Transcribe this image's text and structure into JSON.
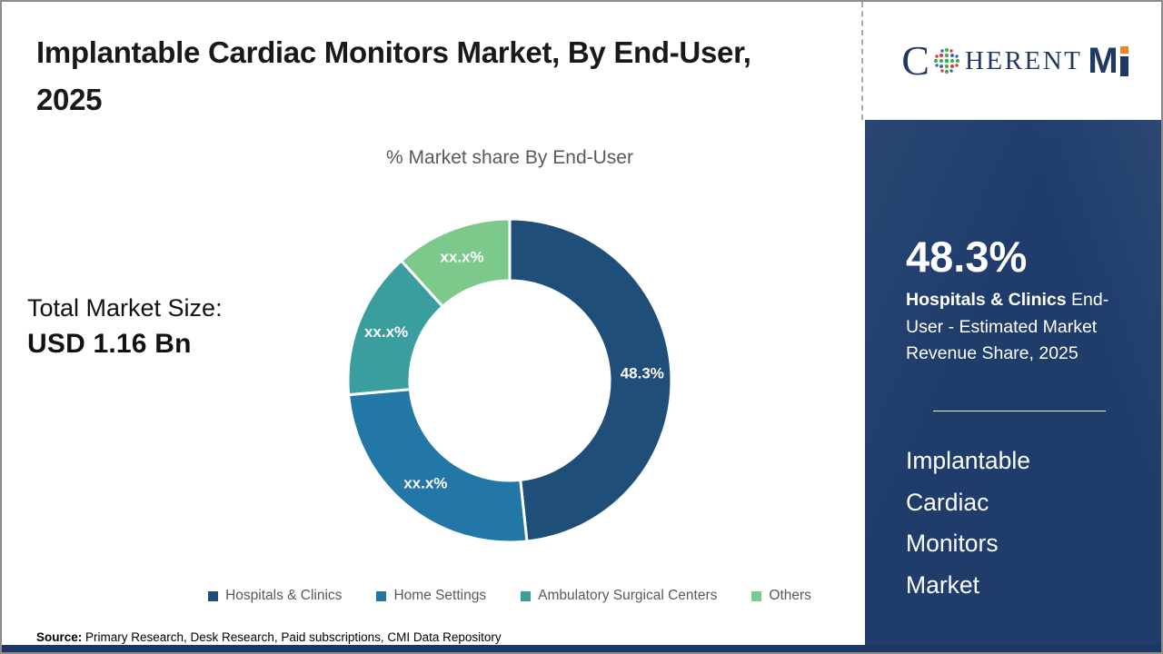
{
  "header": {
    "title": "Implantable Cardiac Monitors Market, By End-User, 2025"
  },
  "logo": {
    "part_c": "C",
    "part_herent": "HERENT",
    "part_m": "M",
    "globe_icon": "dot-globe-icon",
    "brand_color": "#1f3864",
    "accent_color": "#f58220"
  },
  "chart_data": {
    "type": "pie",
    "donut": true,
    "title": "% Market share By End-User",
    "categories": [
      "Hospitals & Clinics",
      "Home Settings",
      "Ambulatory Surgical Centers",
      "Others"
    ],
    "values": [
      48.3,
      25.3,
      14.7,
      11.7
    ],
    "labels": [
      "48.3%",
      "xx.x%",
      "xx.x%",
      "xx.x%"
    ],
    "colors": [
      "#1f4e79",
      "#2277a6",
      "#3a9d9e",
      "#7dc98c"
    ],
    "start_angle_deg": 0,
    "direction": "clockwise",
    "legend_position": "bottom"
  },
  "total_market": {
    "label": "Total Market Size:",
    "value": "USD 1.16 Bn"
  },
  "sidebar": {
    "stat_value": "48.3%",
    "stat_label_bold": "Hospitals & Clinics",
    "stat_label_rest": " End-User - Estimated Market Revenue Share, 2025",
    "market_name": "Implantable Cardiac Monitors Market",
    "background_color": "#1f3c6b"
  },
  "source": {
    "label": "Source:",
    "text": " Primary Research, Desk Research, Paid subscriptions, CMI Data Repository"
  }
}
